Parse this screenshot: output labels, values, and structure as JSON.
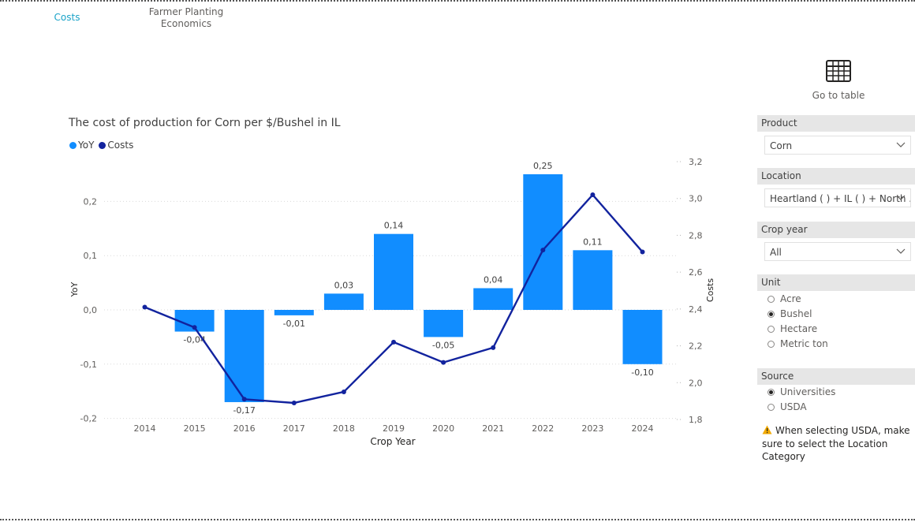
{
  "tabs": [
    {
      "label": "Costs",
      "active": true
    },
    {
      "label": "Farmer Planting Economics",
      "active": false
    }
  ],
  "go_to_table": {
    "label": "Go to table",
    "icon": "table-grid-icon"
  },
  "chart": {
    "title": "The cost of production for Corn per $/Bushel in IL",
    "legend": [
      {
        "name": "YoY",
        "color": "#118DFF"
      },
      {
        "name": "Costs",
        "color": "#12239E"
      }
    ]
  },
  "chart_data": {
    "type": "bar",
    "categories": [
      "2014",
      "2015",
      "2016",
      "2017",
      "2018",
      "2019",
      "2020",
      "2021",
      "2022",
      "2023",
      "2024"
    ],
    "series": [
      {
        "name": "YoY",
        "type": "bar",
        "axis": "left",
        "color": "#118DFF",
        "values": [
          null,
          -0.04,
          -0.17,
          -0.01,
          0.03,
          0.14,
          -0.05,
          0.04,
          0.25,
          0.11,
          -0.1
        ],
        "labels": [
          "",
          "-0,04",
          "-0,17",
          "-0,01",
          "0,03",
          "0,14",
          "-0,05",
          "0,04",
          "0,25",
          "0,11",
          "-0,10"
        ]
      },
      {
        "name": "Costs",
        "type": "line",
        "axis": "right",
        "color": "#12239E",
        "values": [
          2.41,
          2.3,
          1.91,
          1.89,
          1.95,
          2.22,
          2.11,
          2.19,
          2.72,
          3.02,
          2.71
        ]
      }
    ],
    "xlabel": "Crop Year",
    "ylabel_left": "YoY",
    "ylabel_right": "Costs",
    "ylim_left": [
      -0.2,
      0.2
    ],
    "yticks_left": [
      "0,2",
      "0,1",
      "0,0",
      "-0,1",
      "-0,2"
    ],
    "ylim_right": [
      1.8,
      3.2
    ],
    "yticks_right": [
      "3,2",
      "3,0",
      "2,8",
      "2,6",
      "2,4",
      "2,2",
      "2,0",
      "1,8"
    ],
    "grid": true,
    "legend_position": "top-left"
  },
  "filters": {
    "product": {
      "header": "Product",
      "value": "Corn"
    },
    "location": {
      "header": "Location",
      "value": "Heartland ( ) + IL ( ) + North ..."
    },
    "crop_year": {
      "header": "Crop year",
      "value": "All"
    },
    "unit": {
      "header": "Unit",
      "options": [
        {
          "label": "Acre",
          "checked": false
        },
        {
          "label": "Bushel",
          "checked": true
        },
        {
          "label": "Hectare",
          "checked": false
        },
        {
          "label": "Metric ton",
          "checked": false
        }
      ]
    },
    "source": {
      "header": "Source",
      "options": [
        {
          "label": "Universities",
          "checked": true
        },
        {
          "label": "USDA",
          "checked": false
        }
      ]
    }
  },
  "warning": {
    "text": "When selecting USDA, make sure to select the Location Category"
  }
}
